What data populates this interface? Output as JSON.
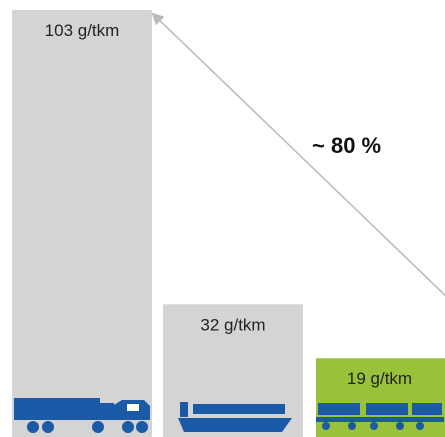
{
  "chart_data": {
    "type": "bar",
    "unit": "g/tkm",
    "categories": [
      "truck",
      "ship",
      "rail"
    ],
    "values": [
      103,
      32,
      19
    ],
    "value_labels": [
      "103 g/tkm",
      "32 g/tkm",
      "19 g/tkm"
    ],
    "icons": [
      "truck-icon",
      "ship-icon",
      "train-icon"
    ],
    "annotation": "~ 80 %",
    "colors": {
      "bar_gray": "#d4d4d4",
      "bar_green": "#99c23a",
      "icon_blue": "#1a5aa6",
      "arrow": "#b9b9b9"
    }
  }
}
